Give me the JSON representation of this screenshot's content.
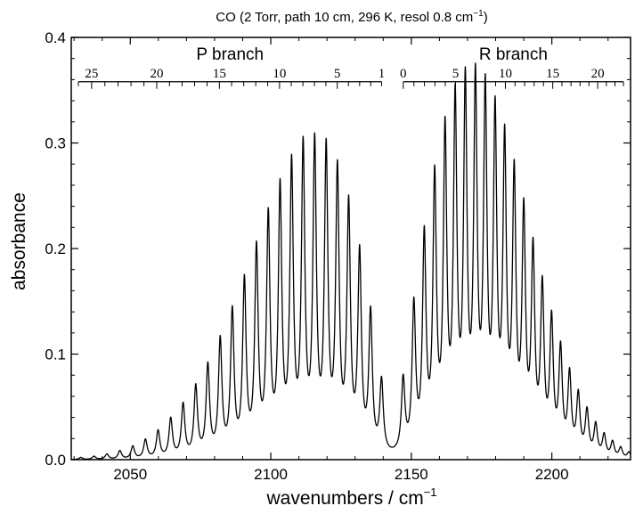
{
  "chart_data": {
    "type": "line",
    "title": "CO (2 Torr, path 10 cm, 296 K, resol 0.8 cm",
    "title_superscript": "−1",
    "title_suffix": ")",
    "xlabel": "wavenumbers / cm",
    "xlabel_superscript": "−1",
    "ylabel": "absorbance",
    "xlim": [
      2029,
      2228
    ],
    "ylim": [
      0,
      0.4
    ],
    "xticks": [
      "2050",
      "2100",
      "2150",
      "2200"
    ],
    "yticks": [
      "0.0",
      "0.1",
      "0.2",
      "0.3",
      "0.4"
    ],
    "grid": false,
    "line_color": "#000000",
    "band_center": 2143.3,
    "peak_halfwidth": 0.75,
    "branches": [
      {
        "name": "P branch",
        "tick_labels": [
          "25",
          "20",
          "15",
          "10",
          "5",
          "1"
        ],
        "J_max_tick": 26,
        "peaks": [
          {
            "J": 1,
            "x": 2139.4,
            "y": 0.068
          },
          {
            "J": 2,
            "x": 2135.5,
            "y": 0.131
          },
          {
            "J": 3,
            "x": 2131.6,
            "y": 0.185
          },
          {
            "J": 4,
            "x": 2127.7,
            "y": 0.229
          },
          {
            "J": 5,
            "x": 2123.7,
            "y": 0.26
          },
          {
            "J": 6,
            "x": 2119.7,
            "y": 0.279
          },
          {
            "J": 7,
            "x": 2115.6,
            "y": 0.284
          },
          {
            "J": 8,
            "x": 2111.5,
            "y": 0.281
          },
          {
            "J": 9,
            "x": 2107.4,
            "y": 0.265
          },
          {
            "J": 10,
            "x": 2103.3,
            "y": 0.244
          },
          {
            "J": 11,
            "x": 2099.1,
            "y": 0.219
          },
          {
            "J": 12,
            "x": 2094.9,
            "y": 0.19
          },
          {
            "J": 13,
            "x": 2090.6,
            "y": 0.161
          },
          {
            "J": 14,
            "x": 2086.3,
            "y": 0.134
          },
          {
            "J": 15,
            "x": 2082.0,
            "y": 0.108
          },
          {
            "J": 16,
            "x": 2077.6,
            "y": 0.085
          },
          {
            "J": 17,
            "x": 2073.3,
            "y": 0.066
          },
          {
            "J": 18,
            "x": 2068.8,
            "y": 0.05
          },
          {
            "J": 19,
            "x": 2064.4,
            "y": 0.037
          },
          {
            "J": 20,
            "x": 2059.9,
            "y": 0.026
          },
          {
            "J": 21,
            "x": 2055.4,
            "y": 0.018
          },
          {
            "J": 22,
            "x": 2050.9,
            "y": 0.012
          },
          {
            "J": 23,
            "x": 2046.3,
            "y": 0.008
          },
          {
            "J": 24,
            "x": 2041.7,
            "y": 0.005
          },
          {
            "J": 25,
            "x": 2037.1,
            "y": 0.003
          },
          {
            "J": 26,
            "x": 2032.4,
            "y": 0.002
          }
        ]
      },
      {
        "name": "R branch",
        "tick_labels": [
          "0",
          "5",
          "10",
          "15",
          "20"
        ],
        "J_max_tick": 23,
        "peaks": [
          {
            "J": 0,
            "x": 2147.1,
            "y": 0.069
          },
          {
            "J": 1,
            "x": 2150.9,
            "y": 0.137
          },
          {
            "J": 2,
            "x": 2154.6,
            "y": 0.199
          },
          {
            "J": 3,
            "x": 2158.3,
            "y": 0.251
          },
          {
            "J": 4,
            "x": 2162.0,
            "y": 0.292
          },
          {
            "J": 5,
            "x": 2165.6,
            "y": 0.319
          },
          {
            "J": 6,
            "x": 2169.2,
            "y": 0.333
          },
          {
            "J": 7,
            "x": 2172.8,
            "y": 0.335
          },
          {
            "J": 8,
            "x": 2176.3,
            "y": 0.325
          },
          {
            "J": 9,
            "x": 2179.8,
            "y": 0.305
          },
          {
            "J": 10,
            "x": 2183.2,
            "y": 0.28
          },
          {
            "J": 11,
            "x": 2186.6,
            "y": 0.25
          },
          {
            "J": 12,
            "x": 2190.0,
            "y": 0.217
          },
          {
            "J": 13,
            "x": 2193.3,
            "y": 0.183
          },
          {
            "J": 14,
            "x": 2196.6,
            "y": 0.151
          },
          {
            "J": 15,
            "x": 2199.9,
            "y": 0.122
          },
          {
            "J": 16,
            "x": 2203.1,
            "y": 0.096
          },
          {
            "J": 17,
            "x": 2206.3,
            "y": 0.074
          },
          {
            "J": 18,
            "x": 2209.4,
            "y": 0.056
          },
          {
            "J": 19,
            "x": 2212.5,
            "y": 0.042
          },
          {
            "J": 20,
            "x": 2215.6,
            "y": 0.03
          },
          {
            "J": 21,
            "x": 2218.6,
            "y": 0.021
          },
          {
            "J": 22,
            "x": 2221.6,
            "y": 0.015
          },
          {
            "J": 23,
            "x": 2224.5,
            "y": 0.01
          },
          {
            "J": 24,
            "x": 2227.4,
            "y": 0.006
          }
        ]
      }
    ]
  }
}
